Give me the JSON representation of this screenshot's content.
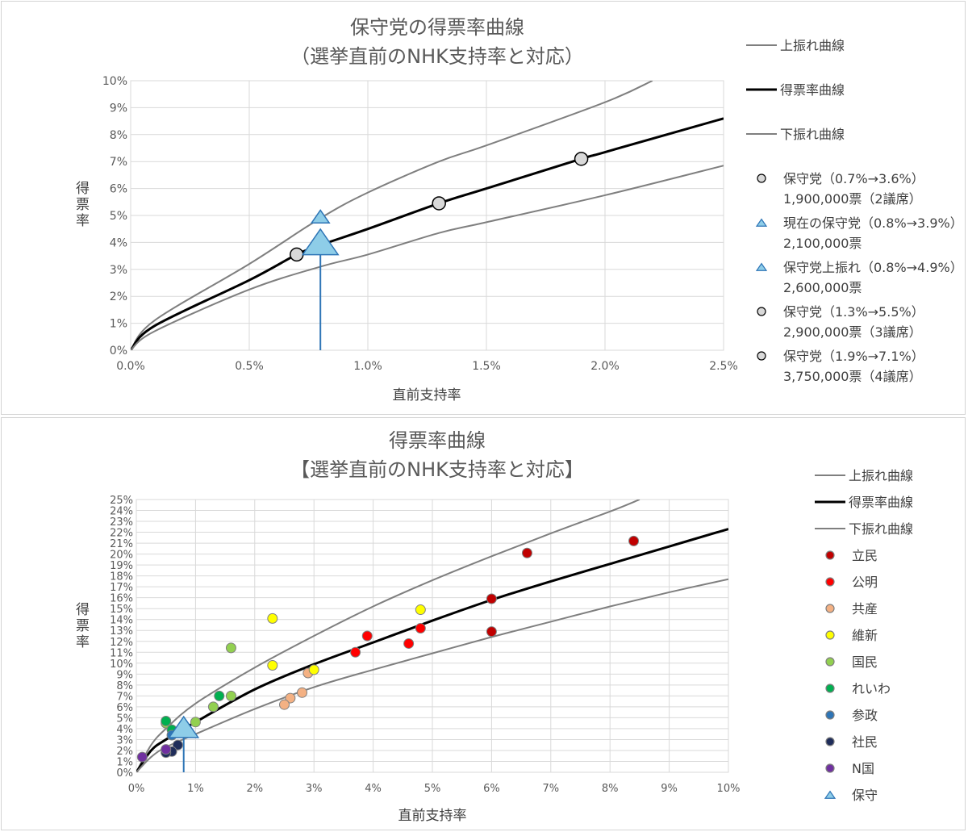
{
  "charts": [
    {
      "title_line1": "保守党の得票率曲線",
      "title_line2": "（選挙直前のNHK支持率と対応）",
      "xlabel": "直前支持率",
      "ylabel": "得票率"
    },
    {
      "title_line1": "得票率曲線",
      "title_line2": "【選挙直前のNHK支持率と対応】",
      "xlabel": "直前支持率",
      "ylabel": "得票率"
    }
  ],
  "chart_data": [
    {
      "type": "scatter",
      "title": "保守党の得票率曲線（選挙直前のNHK支持率と対応）",
      "xlabel": "直前支持率",
      "ylabel": "得票率",
      "xlim": [
        0,
        2.5
      ],
      "ylim": [
        0,
        10
      ],
      "x_ticks": [
        "0.0%",
        "0.5%",
        "1.0%",
        "1.5%",
        "2.0%",
        "2.5%"
      ],
      "y_ticks": [
        "0%",
        "1%",
        "2%",
        "3%",
        "4%",
        "5%",
        "6%",
        "7%",
        "8%",
        "9%",
        "10%"
      ],
      "grid": true,
      "legend_position": "right",
      "curves": [
        {
          "name": "上振れ曲線",
          "color": "#7f7f7f",
          "width": 2,
          "points": [
            [
              0,
              0
            ],
            [
              0.1,
              1.1
            ],
            [
              0.5,
              3.2
            ],
            [
              0.8,
              4.9
            ],
            [
              1.0,
              5.85
            ],
            [
              1.3,
              7.0
            ],
            [
              1.5,
              7.6
            ],
            [
              2.0,
              9.2
            ],
            [
              2.2,
              10.0
            ]
          ]
        },
        {
          "name": "得票率曲線",
          "color": "#000000",
          "width": 3,
          "points": [
            [
              0,
              0
            ],
            [
              0.1,
              0.9
            ],
            [
              0.5,
              2.6
            ],
            [
              0.7,
              3.55
            ],
            [
              0.8,
              3.9
            ],
            [
              1.0,
              4.5
            ],
            [
              1.3,
              5.45
            ],
            [
              1.5,
              6.0
            ],
            [
              1.9,
              7.1
            ],
            [
              2.0,
              7.35
            ],
            [
              2.5,
              8.6
            ]
          ]
        },
        {
          "name": "下振れ曲線",
          "color": "#7f7f7f",
          "width": 2,
          "points": [
            [
              0,
              0
            ],
            [
              0.1,
              0.7
            ],
            [
              0.5,
              2.25
            ],
            [
              0.8,
              3.1
            ],
            [
              1.0,
              3.55
            ],
            [
              1.3,
              4.35
            ],
            [
              1.5,
              4.75
            ],
            [
              2.0,
              5.75
            ],
            [
              2.5,
              6.85
            ]
          ]
        }
      ],
      "vline": {
        "x": 0.8,
        "y": 3.9,
        "color": "#2e75b6"
      },
      "points": [
        {
          "name": "保守党（0.7%→3.6%）",
          "sub": "1,900,000票（2議席）",
          "x": 0.7,
          "y": 3.55,
          "marker": "circle",
          "color": "#d9d9d9",
          "size": 8
        },
        {
          "name": "現在の保守党（0.8%→3.9%）",
          "sub": "2,100,000票",
          "x": 0.8,
          "y": 3.9,
          "marker": "triangle",
          "color": "#8ecde8",
          "size": 22
        },
        {
          "name": "保守党上振れ（0.8%→4.9%）",
          "sub": "2,600,000票",
          "x": 0.8,
          "y": 4.9,
          "marker": "triangle",
          "color": "#8ecde8",
          "size": 11
        },
        {
          "name": "保守党（1.3%→5.5%）",
          "sub": "2,900,000票（3議席）",
          "x": 1.3,
          "y": 5.45,
          "marker": "circle",
          "color": "#d9d9d9",
          "size": 8
        },
        {
          "name": "保守党（1.9%→7.1%）",
          "sub": "3,750,000票（4議席）",
          "x": 1.9,
          "y": 7.1,
          "marker": "circle",
          "color": "#d9d9d9",
          "size": 8
        }
      ],
      "legend": [
        {
          "label": "上振れ曲線",
          "kind": "line",
          "color": "#7f7f7f"
        },
        {
          "label": "得票率曲線",
          "kind": "line",
          "color": "#000000"
        },
        {
          "label": "下振れ曲線",
          "kind": "line",
          "color": "#7f7f7f"
        },
        {
          "label": "保守党（0.7%→3.6%）",
          "sub": "1,900,000票（2議席）",
          "kind": "circle",
          "color": "#d9d9d9"
        },
        {
          "label": "現在の保守党（0.8%→3.9%）",
          "sub": "2,100,000票",
          "kind": "triangle",
          "color": "#8ecde8"
        },
        {
          "label": "保守党上振れ（0.8%→4.9%）",
          "sub": "2,600,000票",
          "kind": "triangle",
          "color": "#8ecde8"
        },
        {
          "label": "保守党（1.3%→5.5%）",
          "sub": "2,900,000票（3議席）",
          "kind": "circle",
          "color": "#d9d9d9"
        },
        {
          "label": "保守党（1.9%→7.1%）",
          "sub": "3,750,000票（4議席）",
          "kind": "circle",
          "color": "#d9d9d9"
        }
      ]
    },
    {
      "type": "scatter",
      "title": "得票率曲線【選挙直前のNHK支持率と対応】",
      "xlabel": "直前支持率",
      "ylabel": "得票率",
      "xlim": [
        0,
        10
      ],
      "ylim": [
        0,
        25
      ],
      "x_ticks": [
        "0%",
        "1%",
        "2%",
        "3%",
        "4%",
        "5%",
        "6%",
        "7%",
        "8%",
        "9%",
        "10%"
      ],
      "y_ticks": [
        "0%",
        "1%",
        "2%",
        "3%",
        "4%",
        "5%",
        "6%",
        "7%",
        "8%",
        "9%",
        "10%",
        "11%",
        "12%",
        "13%",
        "14%",
        "15%",
        "16%",
        "17%",
        "18%",
        "19%",
        "20%",
        "21%",
        "22%",
        "23%",
        "24%",
        "25%"
      ],
      "grid": true,
      "legend_position": "right",
      "curves": [
        {
          "name": "上振れ曲線",
          "color": "#7f7f7f",
          "width": 2,
          "points": [
            [
              0,
              0
            ],
            [
              0.25,
              2.5
            ],
            [
              0.5,
              4.0
            ],
            [
              1,
              6.3
            ],
            [
              2,
              9.6
            ],
            [
              3,
              12.5
            ],
            [
              4,
              15.2
            ],
            [
              5,
              17.6
            ],
            [
              6,
              19.8
            ],
            [
              7,
              21.9
            ],
            [
              8,
              23.9
            ],
            [
              8.5,
              25.0
            ]
          ]
        },
        {
          "name": "得票率曲線",
          "color": "#000000",
          "width": 3,
          "points": [
            [
              0,
              0
            ],
            [
              0.25,
              2.0
            ],
            [
              0.5,
              3.0
            ],
            [
              1,
              4.6
            ],
            [
              2,
              7.6
            ],
            [
              3,
              9.9
            ],
            [
              4,
              11.9
            ],
            [
              5,
              13.9
            ],
            [
              6,
              15.8
            ],
            [
              7,
              17.5
            ],
            [
              8,
              19.1
            ],
            [
              9,
              20.7
            ],
            [
              10,
              22.3
            ]
          ]
        },
        {
          "name": "下振れ曲線",
          "color": "#7f7f7f",
          "width": 2,
          "points": [
            [
              0,
              0
            ],
            [
              0.25,
              1.4
            ],
            [
              0.5,
              2.3
            ],
            [
              1,
              3.5
            ],
            [
              2,
              5.8
            ],
            [
              3,
              7.8
            ],
            [
              4,
              9.4
            ],
            [
              5,
              10.9
            ],
            [
              6,
              12.4
            ],
            [
              7,
              13.8
            ],
            [
              8,
              15.2
            ],
            [
              9,
              16.5
            ],
            [
              10,
              17.7
            ]
          ]
        }
      ],
      "vline": {
        "x": 0.8,
        "y": 3.9,
        "color": "#2e75b6"
      },
      "series": [
        {
          "name": "立民",
          "color": "#c00000",
          "points": [
            [
              6.6,
              20.1
            ],
            [
              8.4,
              21.2
            ],
            [
              6.0,
              15.9
            ],
            [
              6.0,
              12.9
            ]
          ]
        },
        {
          "name": "公明",
          "color": "#ff0000",
          "points": [
            [
              3.9,
              12.5
            ],
            [
              4.8,
              13.2
            ],
            [
              4.6,
              11.8
            ],
            [
              3.7,
              11.0
            ]
          ]
        },
        {
          "name": "共産",
          "color": "#f4b183",
          "points": [
            [
              2.9,
              9.1
            ],
            [
              2.8,
              7.3
            ],
            [
              2.6,
              6.8
            ],
            [
              2.5,
              6.2
            ]
          ]
        },
        {
          "name": "維新",
          "color": "#ffff00",
          "points": [
            [
              2.3,
              14.1
            ],
            [
              4.8,
              14.9
            ],
            [
              2.3,
              9.8
            ],
            [
              3.0,
              9.4
            ]
          ]
        },
        {
          "name": "国民",
          "color": "#92d050",
          "points": [
            [
              1.6,
              11.4
            ],
            [
              1.6,
              7.0
            ],
            [
              1.3,
              6.0
            ],
            [
              1.0,
              4.6
            ],
            [
              0.5,
              4.5
            ]
          ]
        },
        {
          "name": "れいわ",
          "color": "#00b050",
          "points": [
            [
              1.4,
              7.0
            ],
            [
              0.5,
              4.7
            ],
            [
              0.6,
              3.9
            ]
          ]
        },
        {
          "name": "参政",
          "color": "#2e75b6",
          "points": [
            [
              0.6,
              3.4
            ]
          ]
        },
        {
          "name": "社民",
          "color": "#1f2d5a",
          "points": [
            [
              0.7,
              2.5
            ],
            [
              0.6,
              1.9
            ],
            [
              0.5,
              1.8
            ]
          ]
        },
        {
          "name": "N国",
          "color": "#7030a0",
          "points": [
            [
              0.5,
              2.1
            ],
            [
              0.1,
              1.4
            ]
          ]
        },
        {
          "name": "保守",
          "color": "#8ecde8",
          "marker": "triangle",
          "points": [
            [
              0.8,
              3.9
            ]
          ]
        }
      ],
      "legend": [
        {
          "label": "上振れ曲線",
          "kind": "line",
          "color": "#7f7f7f"
        },
        {
          "label": "得票率曲線",
          "kind": "line",
          "color": "#000000"
        },
        {
          "label": "下振れ曲線",
          "kind": "line",
          "color": "#7f7f7f"
        },
        {
          "label": "立民",
          "kind": "circle",
          "color": "#c00000"
        },
        {
          "label": "公明",
          "kind": "circle",
          "color": "#ff0000"
        },
        {
          "label": "共産",
          "kind": "circle",
          "color": "#f4b183"
        },
        {
          "label": "維新",
          "kind": "circle",
          "color": "#ffff00"
        },
        {
          "label": "国民",
          "kind": "circle",
          "color": "#92d050"
        },
        {
          "label": "れいわ",
          "kind": "circle",
          "color": "#00b050"
        },
        {
          "label": "参政",
          "kind": "circle",
          "color": "#2e75b6"
        },
        {
          "label": "社民",
          "kind": "circle",
          "color": "#1f2d5a"
        },
        {
          "label": "N国",
          "kind": "circle",
          "color": "#7030a0"
        },
        {
          "label": "保守",
          "kind": "triangle",
          "color": "#8ecde8"
        }
      ]
    }
  ]
}
